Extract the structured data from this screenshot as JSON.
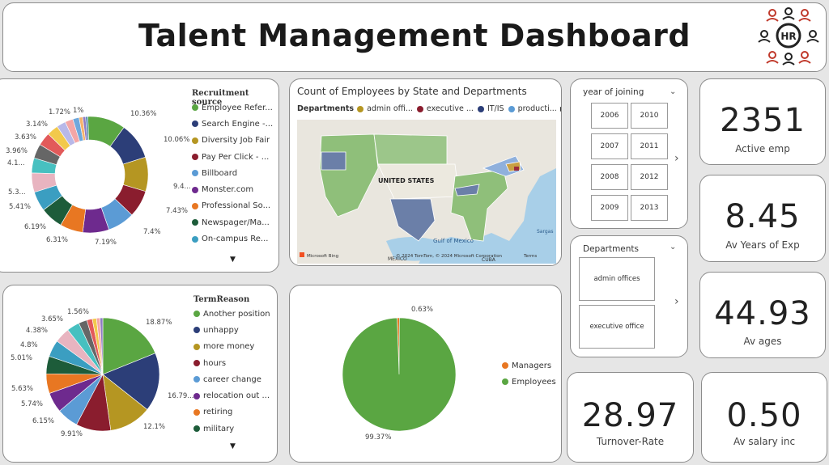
{
  "header": {
    "title": "Talent Management Dashboard",
    "logo_text": "HR"
  },
  "recruitment": {
    "legend_title": "Recruitment source",
    "items": [
      {
        "label": "Employee Refer...",
        "color": "#5aa642"
      },
      {
        "label": "Search Engine -...",
        "color": "#2c3e78"
      },
      {
        "label": "Diversity Job Fair",
        "color": "#b59622"
      },
      {
        "label": "Pay Per Click - ...",
        "color": "#8a1d2e"
      },
      {
        "label": "Billboard",
        "color": "#5b9bd5"
      },
      {
        "label": "Monster.com",
        "color": "#6e2a8e"
      },
      {
        "label": "Professional So...",
        "color": "#e87722"
      },
      {
        "label": "Newspager/Ma...",
        "color": "#1d5c3a"
      },
      {
        "label": "On-campus Re...",
        "color": "#3b9ec1"
      }
    ],
    "slice_labels": [
      "10.36%",
      "10.06%",
      "9.4...",
      "7.43%",
      "7.4%",
      "7.19%",
      "6.31%",
      "6.19%",
      "5.41%",
      "5.3...",
      "4.1...",
      "3.96%",
      "3.63%",
      "3.14%",
      "1.72%",
      "1%"
    ],
    "chart_data": {
      "type": "pie",
      "title": "Recruitment source",
      "donut": true,
      "values": [
        10.36,
        10.06,
        9.4,
        7.43,
        7.4,
        7.19,
        6.31,
        6.19,
        5.41,
        5.3,
        4.1,
        3.96,
        3.63,
        3.14,
        2.5,
        2.2,
        1.72,
        1.0,
        0.8,
        0.6
      ],
      "colors": [
        "#5aa642",
        "#2c3e78",
        "#b59622",
        "#8a1d2e",
        "#5b9bd5",
        "#6e2a8e",
        "#e87722",
        "#1d5c3a",
        "#3b9ec1",
        "#e8b4c0",
        "#47c0c0",
        "#666666",
        "#e25a5a",
        "#f2c94c",
        "#b8b8e8",
        "#f4a6a6",
        "#6fa8dc",
        "#f6b26b",
        "#8e7cc3",
        "#4a86a8"
      ]
    }
  },
  "map": {
    "title": "Count of Employees by State and Departments",
    "legend_label": "Departments",
    "legend_items": [
      {
        "label": "admin offi...",
        "color": "#b59622"
      },
      {
        "label": "executive ...",
        "color": "#8a1d2e"
      },
      {
        "label": "IT/IS",
        "color": "#2c3e78"
      },
      {
        "label": "producti...",
        "color": "#5b9bd5"
      }
    ],
    "labels": {
      "country": "UNITED STATES",
      "gulf": "Gulf of Mexico",
      "mexico": "MEXICO",
      "cuba": "CUBA",
      "sargasso": "Sargas",
      "credit": "© 2024 TomTom, © 2024 Microsoft Corporation",
      "terms": "Terms",
      "bing": "Microsoft Bing"
    }
  },
  "year_slicer": {
    "title": "year of joining",
    "years": [
      "2006",
      "2010",
      "2007",
      "2011",
      "2008",
      "2012",
      "2009",
      "2013"
    ]
  },
  "dept_slicer": {
    "title": "Departments",
    "options": [
      "admin offices",
      "executive office"
    ]
  },
  "kpis": {
    "active": {
      "value": "2351",
      "label": "Active emp"
    },
    "years": {
      "value": "8.45",
      "label": "Av Years of Exp"
    },
    "ages": {
      "value": "44.93",
      "label": "Av ages"
    },
    "turnover": {
      "value": "28.97",
      "label": "Turnover-Rate"
    },
    "salary": {
      "value": "0.50",
      "label": "Av salary inc"
    }
  },
  "term": {
    "legend_title": "TermReason",
    "items": [
      {
        "label": "Another position",
        "color": "#5aa642"
      },
      {
        "label": "unhappy",
        "color": "#2c3e78"
      },
      {
        "label": "more money",
        "color": "#b59622"
      },
      {
        "label": "hours",
        "color": "#8a1d2e"
      },
      {
        "label": "career change",
        "color": "#5b9bd5"
      },
      {
        "label": "relocation out ...",
        "color": "#6e2a8e"
      },
      {
        "label": "retiring",
        "color": "#e87722"
      },
      {
        "label": "military",
        "color": "#1d5c3a"
      }
    ],
    "slice_labels": [
      "18.87%",
      "16.79...",
      "12.1%",
      "9.91%",
      "6.15%",
      "5.74%",
      "5.63%",
      "5.01%",
      "4.8%",
      "4.38%",
      "3.65%",
      "1.56%"
    ],
    "chart_data": {
      "type": "pie",
      "title": "TermReason",
      "values": [
        18.87,
        16.79,
        12.1,
        9.91,
        6.15,
        5.74,
        5.63,
        5.01,
        4.8,
        4.38,
        3.65,
        2.4,
        1.56,
        1.2,
        1.0,
        0.8
      ],
      "colors": [
        "#5aa642",
        "#2c3e78",
        "#b59622",
        "#8a1d2e",
        "#5b9bd5",
        "#6e2a8e",
        "#e87722",
        "#1d5c3a",
        "#3b9ec1",
        "#e8b4c0",
        "#47c0c0",
        "#666666",
        "#e25a5a",
        "#f2c94c",
        "#f4a6a6",
        "#8e7cc3"
      ]
    }
  },
  "managers": {
    "items": [
      {
        "label": "Managers",
        "color": "#e87722"
      },
      {
        "label": "Employees",
        "color": "#5aa642"
      }
    ],
    "slice_labels": [
      "0.63%",
      "99.37%"
    ],
    "chart_data": {
      "type": "pie",
      "categories": [
        "Managers",
        "Employees"
      ],
      "values": [
        0.63,
        99.37
      ],
      "colors": [
        "#e87722",
        "#5aa642"
      ]
    }
  }
}
